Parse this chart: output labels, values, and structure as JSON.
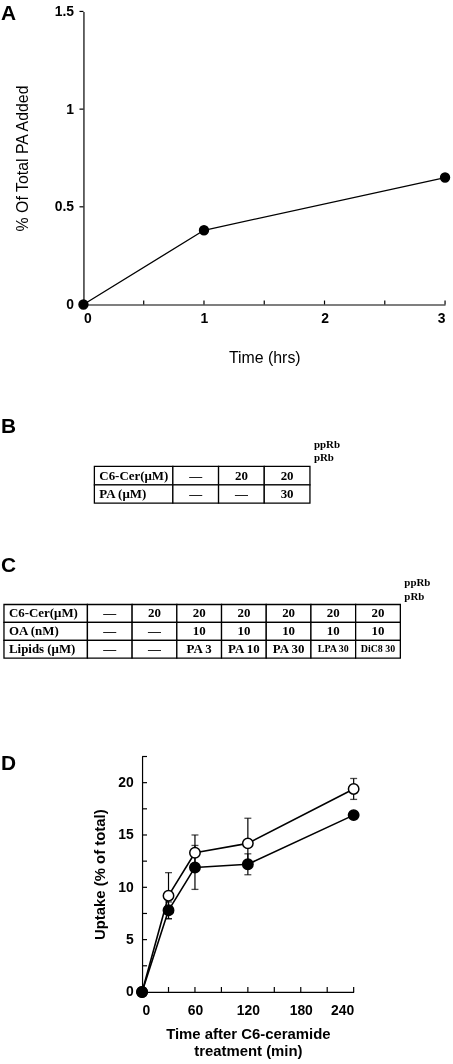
{
  "chart_data": [
    {
      "type": "line",
      "title": "A",
      "xlabel": "Time (hrs)",
      "ylabel": "% Of Total PA Added",
      "x": [
        0,
        1,
        3
      ],
      "series": [
        {
          "color": "#000000",
          "values": [
            0,
            0.38,
            0.65
          ]
        }
      ],
      "xlim": [
        0,
        3
      ],
      "ylim": [
        0,
        1.5
      ],
      "xticks": [
        0,
        {
          "value": 0.5,
          "label": null
        },
        1,
        {
          "value": 1.5,
          "label": null
        },
        2,
        {
          "value": 2.5,
          "label": null
        },
        3
      ],
      "yticks": [
        0,
        0.5,
        1,
        1.5
      ],
      "marker": "circle"
    },
    {
      "type": "other",
      "title": "B",
      "y_categories": [
        "C6-Cer(μM)",
        "PA (μM)"
      ],
      "cell_labels": [
        [
          "—",
          "20",
          "20"
        ],
        [
          "—",
          "—",
          "30"
        ]
      ],
      "annotations": [
        "ppRb",
        "pRb"
      ]
    },
    {
      "type": "other",
      "title": "C",
      "y_categories": [
        "C6-Cer(μM)",
        "OA (nM)",
        "Lipids (μM)"
      ],
      "cell_labels": [
        [
          "—",
          "20",
          "20",
          "20",
          "20",
          "20",
          "20"
        ],
        [
          "—",
          "—",
          "10",
          "10",
          "10",
          "10",
          "10"
        ],
        [
          "—",
          "—",
          "PA 3",
          "PA 10",
          "PA 30",
          "LPA 30",
          "DiC8 30"
        ]
      ],
      "annotations": [
        "ppRb",
        "pRb"
      ]
    },
    {
      "type": "line",
      "title": "D",
      "xlabel": "Time after C6-ceramide\ntreatment (min)",
      "ylabel": "Uptake (% of total)",
      "x": [
        0,
        30,
        60,
        120,
        240
      ],
      "series": [
        {
          "color": "#000000",
          "values": [
            0,
            9.2,
            13.3,
            14.2,
            19.4
          ],
          "errors": [
            null,
            2.2,
            1.7,
            2.4,
            1.0
          ]
        },
        {
          "color": "#000000",
          "values": [
            0,
            7.8,
            11.9,
            12.2,
            16.9
          ],
          "errors": [
            null,
            0.8,
            2.1,
            1.0,
            null
          ]
        }
      ],
      "xlim": [
        0,
        240
      ],
      "ylim": [
        0,
        22.5
      ],
      "xticks": [
        0,
        {
          "value": 30,
          "label": null
        },
        60,
        {
          "value": 90,
          "label": null
        },
        120,
        {
          "value": 150,
          "label": null
        },
        180,
        {
          "value": 210,
          "label": null
        },
        240
      ],
      "yticks": [
        0,
        {
          "value": 2.5,
          "label": null
        },
        5,
        {
          "value": 7.5,
          "label": null
        },
        10,
        {
          "value": 12.5,
          "label": null
        },
        15,
        {
          "value": 17.5,
          "label": null
        },
        20,
        {
          "value": 22.5,
          "label": null
        }
      ],
      "marker": "circle"
    }
  ]
}
